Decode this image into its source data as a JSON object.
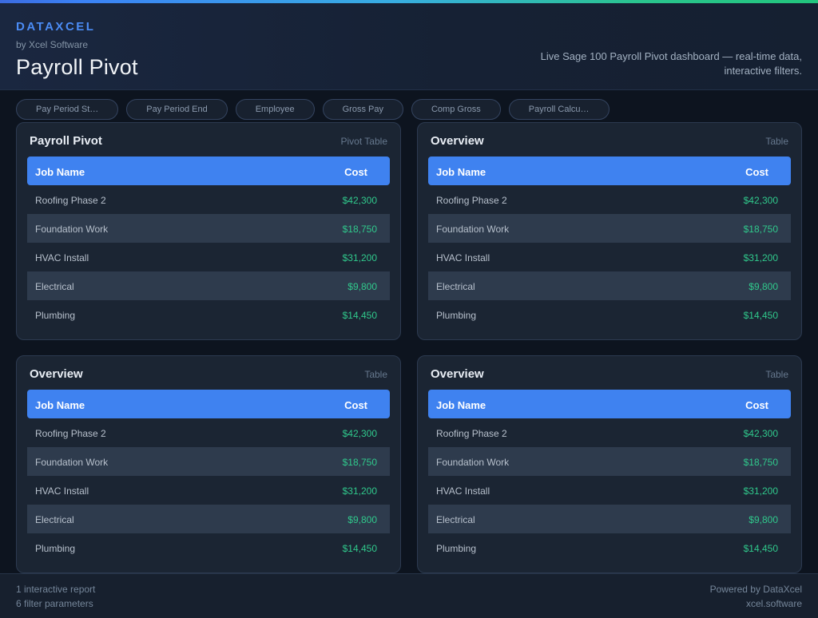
{
  "header": {
    "brand": "DATAXCEL",
    "byline": "by Xcel Software",
    "title": "Payroll Pivot",
    "tagline_line1": "Live Sage 100 Payroll Pivot dashboard — real-time data,",
    "tagline_line2": "interactive filters."
  },
  "filters": {
    "items": [
      {
        "label": "Pay Period St…"
      },
      {
        "label": "Pay Period End"
      },
      {
        "label": "Employee"
      },
      {
        "label": "Gross Pay"
      },
      {
        "label": "Comp Gross"
      },
      {
        "label": "Payroll Calcu…"
      }
    ]
  },
  "cards": [
    {
      "title": "Payroll Pivot",
      "type_label": "Pivot Table",
      "columns": {
        "name": "Job Name",
        "cost": "Cost"
      },
      "rows": [
        {
          "name": "Roofing Phase 2",
          "cost": "$42,300"
        },
        {
          "name": "Foundation Work",
          "cost": "$18,750"
        },
        {
          "name": "HVAC Install",
          "cost": "$31,200"
        },
        {
          "name": "Electrical",
          "cost": "$9,800"
        },
        {
          "name": "Plumbing",
          "cost": "$14,450"
        }
      ]
    },
    {
      "title": "Overview",
      "type_label": "Table",
      "columns": {
        "name": "Job Name",
        "cost": "Cost"
      },
      "rows": [
        {
          "name": "Roofing Phase 2",
          "cost": "$42,300"
        },
        {
          "name": "Foundation Work",
          "cost": "$18,750"
        },
        {
          "name": "HVAC Install",
          "cost": "$31,200"
        },
        {
          "name": "Electrical",
          "cost": "$9,800"
        },
        {
          "name": "Plumbing",
          "cost": "$14,450"
        }
      ]
    },
    {
      "title": "Overview",
      "type_label": "Table",
      "columns": {
        "name": "Job Name",
        "cost": "Cost"
      },
      "rows": [
        {
          "name": "Roofing Phase 2",
          "cost": "$42,300"
        },
        {
          "name": "Foundation Work",
          "cost": "$18,750"
        },
        {
          "name": "HVAC Install",
          "cost": "$31,200"
        },
        {
          "name": "Electrical",
          "cost": "$9,800"
        },
        {
          "name": "Plumbing",
          "cost": "$14,450"
        }
      ]
    },
    {
      "title": "Overview",
      "type_label": "Table",
      "columns": {
        "name": "Job Name",
        "cost": "Cost"
      },
      "rows": [
        {
          "name": "Roofing Phase 2",
          "cost": "$42,300"
        },
        {
          "name": "Foundation Work",
          "cost": "$18,750"
        },
        {
          "name": "HVAC Install",
          "cost": "$31,200"
        },
        {
          "name": "Electrical",
          "cost": "$9,800"
        },
        {
          "name": "Plumbing",
          "cost": "$14,450"
        }
      ]
    }
  ],
  "footer": {
    "left_line1": "1 interactive report",
    "left_line2": "6 filter parameters",
    "right_line1": "Powered by DataXcel",
    "right_line2": "xcel.software"
  },
  "colors": {
    "accent_blue": "#3f82f0",
    "brand_blue": "#4b8cf5",
    "money_green": "#30c98c",
    "stripe": "#2e3b4d",
    "card_bg": "#1b2533",
    "page_bg": "#0d141f",
    "topbar_gradient_from": "#3b82f6",
    "topbar_gradient_to": "#22c57d"
  }
}
